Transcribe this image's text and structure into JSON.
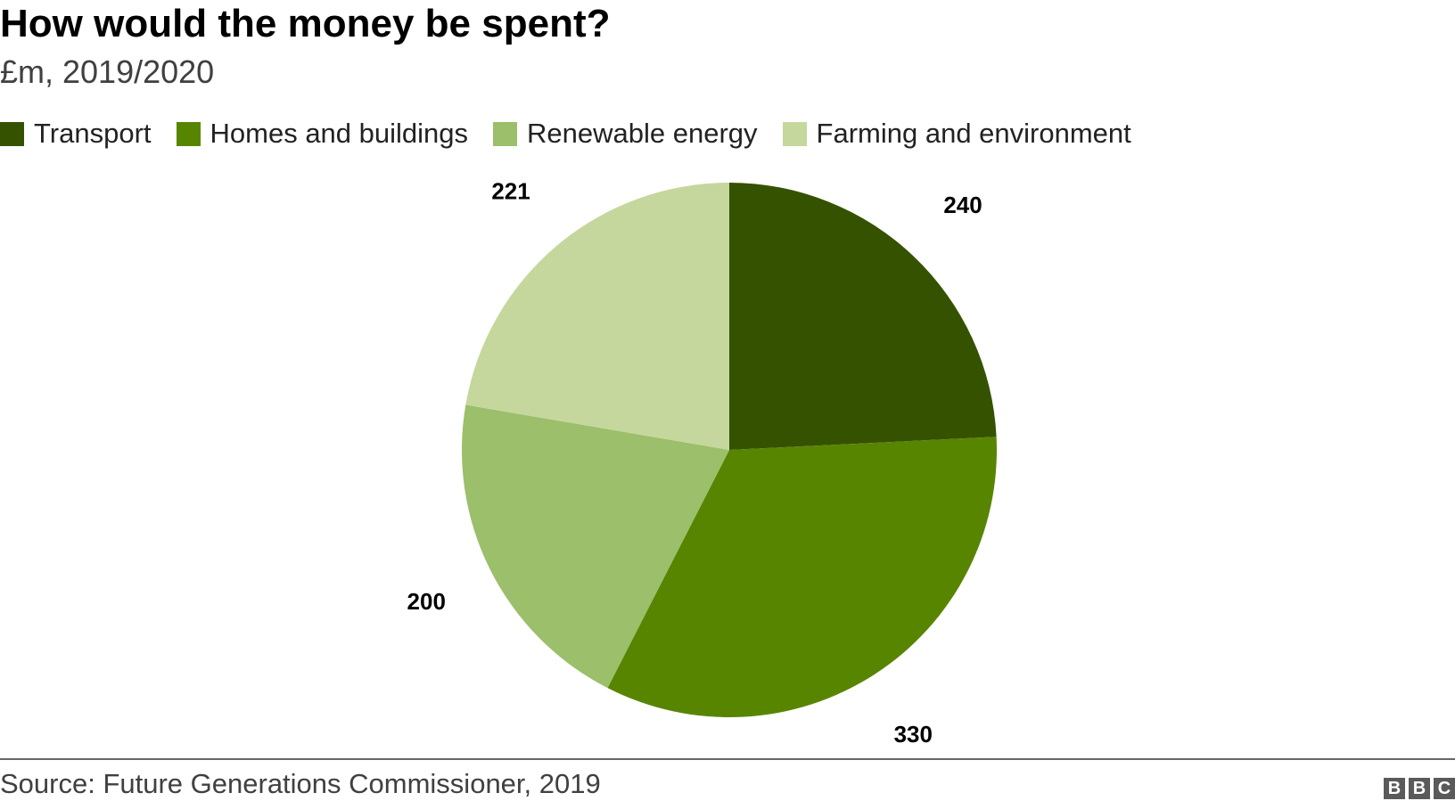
{
  "title": "How would the money be spent?",
  "subtitle": "£m, 2019/2020",
  "source": "Source: Future Generations Commissioner, 2019",
  "logo": [
    "B",
    "B",
    "C"
  ],
  "chart_data": {
    "type": "pie",
    "title": "How would the money be spent?",
    "subtitle": "£m, 2019/2020",
    "legend_position": "top-left",
    "slices": [
      {
        "label": "Transport",
        "value": 240,
        "display": "240",
        "color": "#355200"
      },
      {
        "label": "Homes and buildings",
        "value": 330,
        "display": "330",
        "color": "#588500"
      },
      {
        "label": "Renewable energy",
        "value": 200,
        "display": "200",
        "color": "#9bbf6a"
      },
      {
        "label": "Farming and environment",
        "value": 221,
        "display": "221",
        "color": "#c5d79d"
      }
    ]
  }
}
